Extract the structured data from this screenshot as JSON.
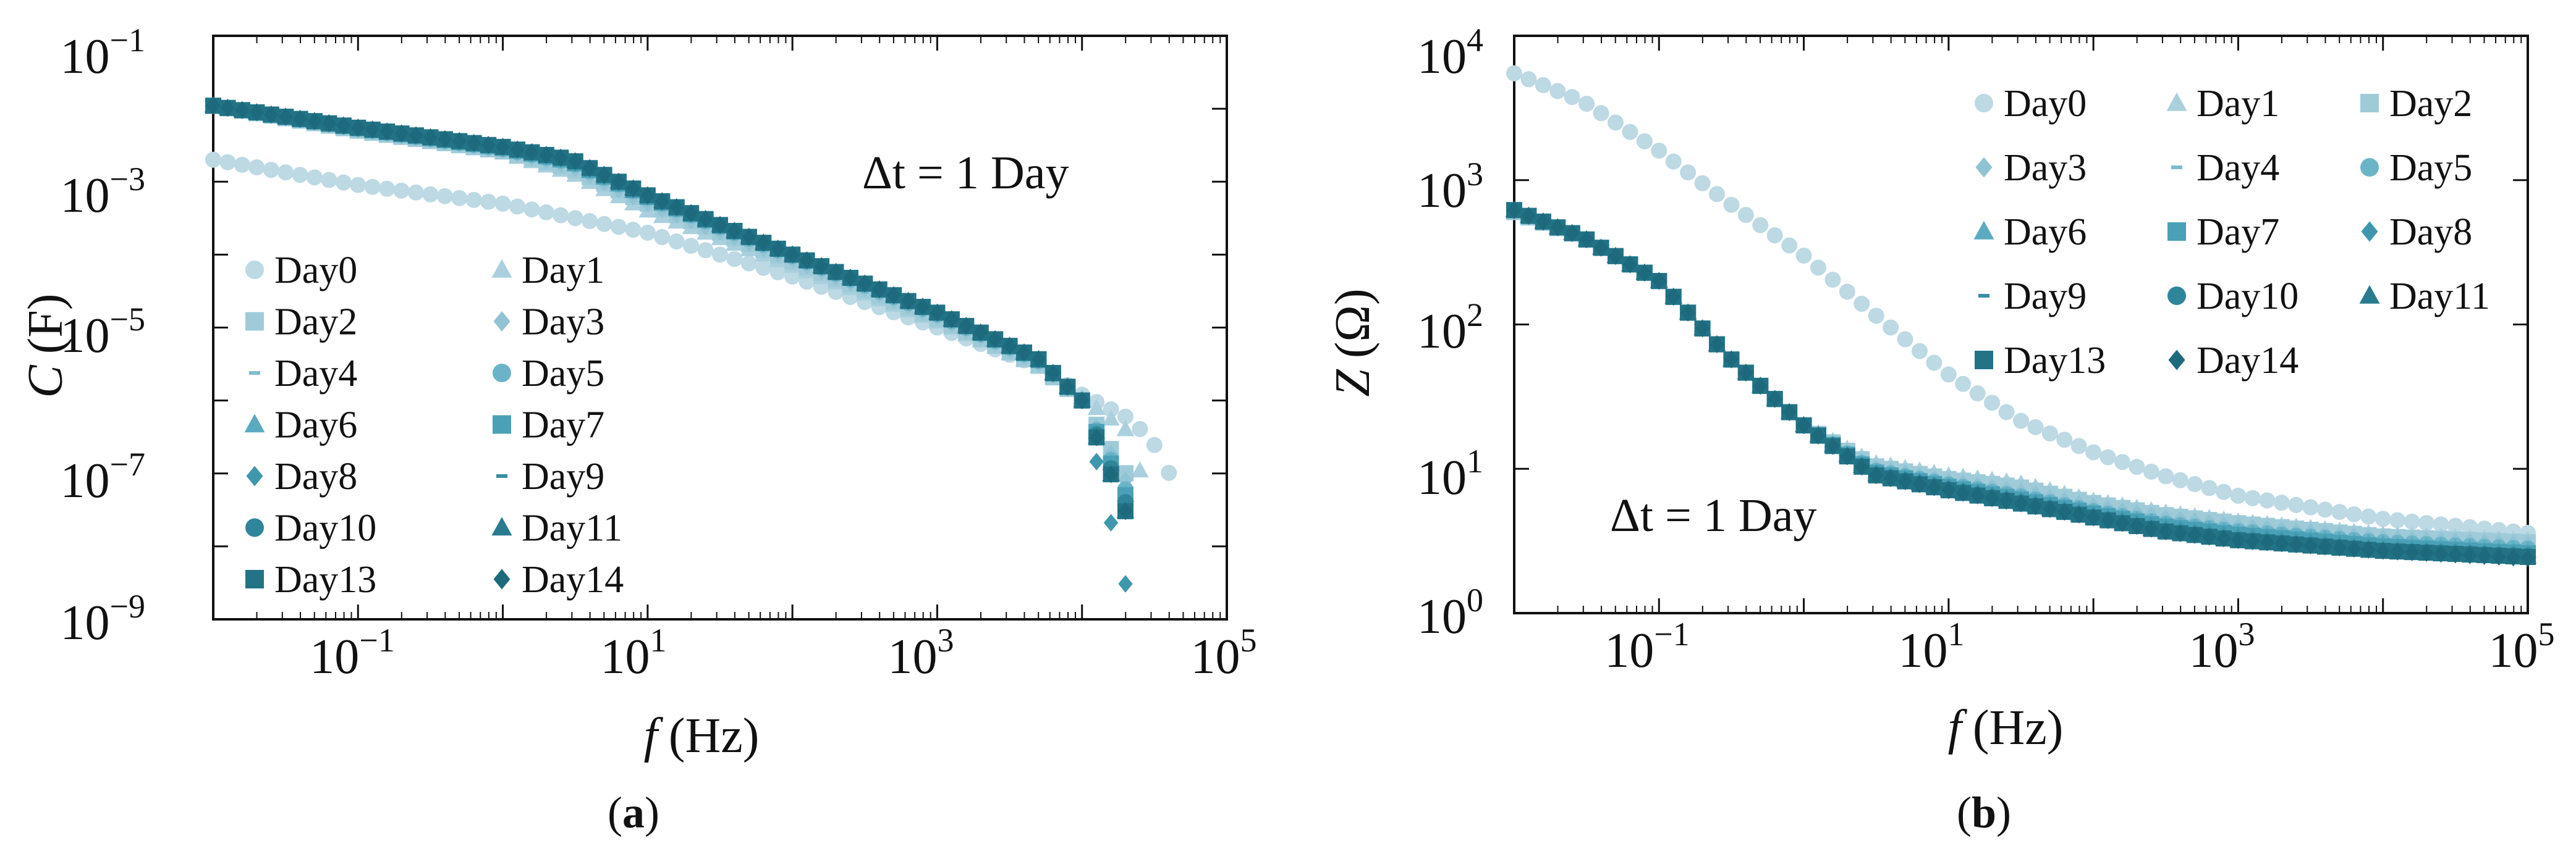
{
  "chart_data": [
    {
      "type": "scatter",
      "panel": "a",
      "panel_label": "(a)",
      "panel_label_parts": {
        "open": "(",
        "letter": "a",
        "close": ")"
      },
      "ylabel": "C (F)",
      "ylabel_parts": {
        "var": "C",
        "unit": "(F)"
      },
      "xlabel": "f (Hz)",
      "xlabel_parts": {
        "var": "f",
        "unit": "(Hz)"
      },
      "x_scale": "log",
      "y_scale": "log",
      "xlim": [
        0.01,
        100000
      ],
      "ylim": [
        1e-09,
        0.1
      ],
      "x_ticks": [
        {
          "base": "10",
          "exp": "−1"
        },
        {
          "base": "10",
          "exp": "1"
        },
        {
          "base": "10",
          "exp": "3"
        },
        {
          "base": "10",
          "exp": "5"
        }
      ],
      "x_tick_values": [
        0.1,
        10,
        1000,
        100000
      ],
      "y_ticks": [
        {
          "base": "10",
          "exp": "−1"
        },
        {
          "base": "10",
          "exp": "−3"
        },
        {
          "base": "10",
          "exp": "−5"
        },
        {
          "base": "10",
          "exp": "−7"
        },
        {
          "base": "10",
          "exp": "−9"
        }
      ],
      "y_tick_values": [
        0.1,
        0.001,
        1e-05,
        1e-07,
        1e-09
      ],
      "annotation": "Δt = 1 Day",
      "legend_position": "lower-left",
      "legend_columns": 2,
      "series": [
        {
          "name": "Day0",
          "marker": "circle",
          "color": "#bcd9e4",
          "x": [
            0.01,
            0.1,
            1,
            10,
            100,
            1000,
            5000,
            10000,
            20000,
            30000,
            40000
          ],
          "y": [
            0.002,
            0.0009,
            0.0005,
            0.0002,
            5e-05,
            1e-05,
            3e-06,
            1.2e-06,
            6e-07,
            3e-07,
            1e-07
          ]
        },
        {
          "name": "Day1",
          "marker": "triangle",
          "color": "#aad0de",
          "x": [
            0.01,
            0.1,
            1,
            3,
            10,
            100,
            1000,
            5000,
            10000,
            20000,
            30000
          ],
          "y": [
            0.011,
            0.005,
            0.0025,
            0.0013,
            0.0004,
            7e-05,
            1.2e-05,
            3e-06,
            1.1e-06,
            4e-07,
            4e-08
          ]
        },
        {
          "name": "Day2",
          "marker": "square",
          "color": "#9fcbd9",
          "x": [
            0.01,
            0.1,
            1,
            3,
            10,
            100,
            1000,
            5000,
            10000,
            20000
          ],
          "y": [
            0.011,
            0.005,
            0.0026,
            0.0015,
            0.0005,
            8e-05,
            1.3e-05,
            3e-06,
            1e-06,
            1e-07
          ]
        },
        {
          "name": "Day3",
          "marker": "diamond",
          "color": "#90c3d4",
          "x": [
            0.01,
            0.1,
            1,
            3,
            10,
            100,
            1000,
            5000,
            10000,
            20000
          ],
          "y": [
            0.011,
            0.0052,
            0.0027,
            0.0016,
            0.0005,
            8.5e-05,
            1.4e-05,
            3.2e-06,
            1e-06,
            8e-08
          ]
        },
        {
          "name": "Day4",
          "marker": "dash",
          "color": "#80bccf",
          "x": [
            0.01,
            0.1,
            1,
            3,
            10,
            100,
            1000,
            5000,
            10000,
            20000
          ],
          "y": [
            0.011,
            0.0053,
            0.0028,
            0.0017,
            0.00055,
            9e-05,
            1.5e-05,
            3.4e-06,
            1e-06,
            7e-08
          ]
        },
        {
          "name": "Day5",
          "marker": "circle",
          "color": "#6bb4c8",
          "x": [
            0.01,
            0.1,
            1,
            3,
            10,
            100,
            1000,
            5000,
            10000,
            20000
          ],
          "y": [
            0.011,
            0.0053,
            0.0028,
            0.0018,
            0.0006,
            9.5e-05,
            1.5e-05,
            3.5e-06,
            1e-06,
            6e-08
          ]
        },
        {
          "name": "Day6",
          "marker": "triangle",
          "color": "#5aabc0",
          "x": [
            0.01,
            0.1,
            1,
            3,
            10,
            100,
            1000,
            5000,
            10000,
            20000
          ],
          "y": [
            0.011,
            0.0054,
            0.0029,
            0.0018,
            0.0006,
            0.0001,
            1.6e-05,
            3.6e-06,
            1e-06,
            5e-08
          ]
        },
        {
          "name": "Day7",
          "marker": "square",
          "color": "#4aa1b7",
          "x": [
            0.01,
            0.1,
            1,
            3,
            10,
            100,
            1000,
            5000,
            10000,
            20000
          ],
          "y": [
            0.011,
            0.0054,
            0.0029,
            0.0019,
            0.00062,
            0.0001,
            1.6e-05,
            3.6e-06,
            1e-06,
            5e-08
          ]
        },
        {
          "name": "Day8",
          "marker": "diamond",
          "color": "#3f97ad",
          "x": [
            0.01,
            0.1,
            1,
            3,
            10,
            100,
            1000,
            5000,
            10000,
            20000
          ],
          "y": [
            0.011,
            0.0055,
            0.003,
            0.0019,
            0.00063,
            0.0001,
            1.6e-05,
            3.7e-06,
            1e-06,
            3e-09
          ]
        },
        {
          "name": "Day9",
          "marker": "dash",
          "color": "#388ea3",
          "x": [
            0.01,
            0.1,
            1,
            3,
            10,
            100,
            1000,
            5000,
            10000,
            20000
          ],
          "y": [
            0.011,
            0.0055,
            0.003,
            0.002,
            0.00064,
            0.0001,
            1.6e-05,
            3.7e-06,
            1e-06,
            4e-08
          ]
        },
        {
          "name": "Day10",
          "marker": "circle",
          "color": "#2f8599",
          "x": [
            0.01,
            0.1,
            1,
            3,
            10,
            100,
            1000,
            5000,
            10000,
            20000
          ],
          "y": [
            0.011,
            0.0055,
            0.003,
            0.002,
            0.00065,
            0.0001,
            1.6e-05,
            3.7e-06,
            1e-06,
            4e-08
          ]
        },
        {
          "name": "Day11",
          "marker": "triangle",
          "color": "#297c8f",
          "x": [
            0.01,
            0.1,
            1,
            3,
            10,
            100,
            1000,
            5000,
            10000,
            20000
          ],
          "y": [
            0.011,
            0.0055,
            0.003,
            0.002,
            0.00065,
            0.0001,
            1.6e-05,
            3.7e-06,
            1e-06,
            3e-08
          ]
        },
        {
          "name": "Day13",
          "marker": "square",
          "color": "#237386",
          "x": [
            0.01,
            0.1,
            1,
            3,
            10,
            100,
            1000,
            5000,
            10000,
            20000
          ],
          "y": [
            0.011,
            0.0055,
            0.003,
            0.002,
            0.00065,
            0.0001,
            1.6e-05,
            3.7e-06,
            1e-06,
            3e-08
          ]
        },
        {
          "name": "Day14",
          "marker": "diamond",
          "color": "#1d6a7c",
          "x": [
            0.01,
            0.1,
            1,
            3,
            10,
            100,
            1000,
            5000,
            10000,
            20000
          ],
          "y": [
            0.011,
            0.0055,
            0.003,
            0.002,
            0.00065,
            0.0001,
            1.6e-05,
            3.7e-06,
            1e-06,
            3e-08
          ]
        }
      ]
    },
    {
      "type": "scatter",
      "panel": "b",
      "panel_label": "(b)",
      "panel_label_parts": {
        "open": "(",
        "letter": "b",
        "close": ")"
      },
      "ylabel": "Z (Ω)",
      "ylabel_parts": {
        "var": "Z",
        "unit": "(Ω)"
      },
      "xlabel": "f (Hz)",
      "xlabel_parts": {
        "var": "f",
        "unit": "(Hz)"
      },
      "x_scale": "log",
      "y_scale": "log",
      "xlim": [
        0.01,
        100000
      ],
      "ylim": [
        1,
        10000
      ],
      "x_ticks": [
        {
          "base": "10",
          "exp": "−1"
        },
        {
          "base": "10",
          "exp": "1"
        },
        {
          "base": "10",
          "exp": "3"
        },
        {
          "base": "10",
          "exp": "5"
        }
      ],
      "x_tick_values": [
        0.1,
        10,
        1000,
        100000
      ],
      "y_ticks": [
        {
          "base": "10",
          "exp": "4"
        },
        {
          "base": "10",
          "exp": "3"
        },
        {
          "base": "10",
          "exp": "2"
        },
        {
          "base": "10",
          "exp": "1"
        },
        {
          "base": "10",
          "exp": "0"
        }
      ],
      "y_tick_values": [
        10000,
        1000,
        100,
        10,
        1
      ],
      "annotation": "Δt = 1 Day",
      "legend_position": "upper-right",
      "legend_columns": 3,
      "series": [
        {
          "name": "Day0",
          "marker": "circle",
          "color": "#bcd9e4",
          "x": [
            0.01,
            0.03,
            0.1,
            0.3,
            1,
            3,
            10,
            30,
            100,
            300,
            1000,
            10000,
            100000
          ],
          "y": [
            5500,
            3500,
            1600,
            700,
            300,
            120,
            45,
            22,
            13,
            9,
            6.5,
            4.5,
            3.6
          ]
        },
        {
          "name": "Day1",
          "marker": "triangle",
          "color": "#aad0de",
          "x": [
            0.01,
            0.03,
            0.1,
            0.3,
            1,
            3,
            10,
            30,
            100,
            300,
            1000,
            10000,
            100000
          ],
          "y": [
            600,
            400,
            200,
            60,
            20,
            11,
            9,
            8,
            6,
            5,
            4.3,
            3.5,
            3.2
          ]
        },
        {
          "name": "Day2",
          "marker": "square",
          "color": "#9fcbd9",
          "x": [
            0.01,
            0.03,
            0.1,
            0.3,
            1,
            3,
            10,
            30,
            100,
            300,
            1000,
            10000,
            100000
          ],
          "y": [
            600,
            400,
            200,
            60,
            20,
            10.5,
            8.5,
            7.5,
            5.8,
            4.8,
            4.2,
            3.4,
            3.1
          ]
        },
        {
          "name": "Day3",
          "marker": "diamond",
          "color": "#90c3d4",
          "x": [
            0.01,
            0.03,
            0.1,
            0.3,
            1,
            3,
            10,
            30,
            100,
            300,
            1000,
            10000,
            100000
          ],
          "y": [
            610,
            400,
            200,
            60,
            20,
            10.2,
            8.2,
            7,
            5.5,
            4.6,
            4,
            3.3,
            3
          ]
        },
        {
          "name": "Day4",
          "marker": "dash",
          "color": "#80bccf",
          "x": [
            0.01,
            0.03,
            0.1,
            0.3,
            1,
            3,
            10,
            30,
            100,
            300,
            1000,
            10000,
            100000
          ],
          "y": [
            610,
            400,
            200,
            60,
            20,
            10,
            8,
            6.8,
            5.3,
            4.4,
            3.9,
            3.2,
            2.9
          ]
        },
        {
          "name": "Day5",
          "marker": "circle",
          "color": "#6bb4c8",
          "x": [
            0.01,
            0.03,
            0.1,
            0.3,
            1,
            3,
            10,
            30,
            100,
            300,
            1000,
            10000,
            100000
          ],
          "y": [
            615,
            400,
            200,
            60,
            20,
            9.8,
            7.8,
            6.5,
            5.1,
            4.2,
            3.7,
            3.1,
            2.8
          ]
        },
        {
          "name": "Day6",
          "marker": "triangle",
          "color": "#5aabc0",
          "x": [
            0.01,
            0.03,
            0.1,
            0.3,
            1,
            3,
            10,
            30,
            100,
            300,
            1000,
            10000,
            100000
          ],
          "y": [
            620,
            400,
            200,
            60,
            20,
            9.6,
            7.6,
            6.3,
            5,
            4.1,
            3.6,
            3,
            2.7
          ]
        },
        {
          "name": "Day7",
          "marker": "square",
          "color": "#4aa1b7",
          "x": [
            0.01,
            0.03,
            0.1,
            0.3,
            1,
            3,
            10,
            30,
            100,
            300,
            1000,
            10000,
            100000
          ],
          "y": [
            620,
            400,
            200,
            60,
            20,
            9.5,
            7.5,
            6.2,
            4.9,
            4,
            3.5,
            2.9,
            2.6
          ]
        },
        {
          "name": "Day8",
          "marker": "diamond",
          "color": "#3f97ad",
          "x": [
            0.01,
            0.03,
            0.1,
            0.3,
            1,
            3,
            10,
            30,
            100,
            300,
            1000,
            10000,
            100000
          ],
          "y": [
            620,
            400,
            200,
            60,
            20,
            9.4,
            7.4,
            6.1,
            4.8,
            3.9,
            3.4,
            2.8,
            2.55
          ]
        },
        {
          "name": "Day9",
          "marker": "dash",
          "color": "#388ea3",
          "x": [
            0.01,
            0.03,
            0.1,
            0.3,
            1,
            3,
            10,
            30,
            100,
            300,
            1000,
            10000,
            100000
          ],
          "y": [
            620,
            400,
            200,
            60,
            20,
            9.3,
            7.3,
            6,
            4.7,
            3.8,
            3.3,
            2.75,
            2.5
          ]
        },
        {
          "name": "Day10",
          "marker": "circle",
          "color": "#2f8599",
          "x": [
            0.01,
            0.03,
            0.1,
            0.3,
            1,
            3,
            10,
            30,
            100,
            300,
            1000,
            10000,
            100000
          ],
          "y": [
            620,
            400,
            200,
            60,
            20,
            9.2,
            7.2,
            5.9,
            4.6,
            3.7,
            3.2,
            2.7,
            2.5
          ]
        },
        {
          "name": "Day11",
          "marker": "triangle",
          "color": "#297c8f",
          "x": [
            0.01,
            0.03,
            0.1,
            0.3,
            1,
            3,
            10,
            30,
            100,
            300,
            1000,
            10000,
            100000
          ],
          "y": [
            620,
            400,
            200,
            60,
            20,
            9.2,
            7.2,
            5.9,
            4.6,
            3.7,
            3.2,
            2.7,
            2.45
          ]
        },
        {
          "name": "Day13",
          "marker": "square",
          "color": "#237386",
          "x": [
            0.01,
            0.03,
            0.1,
            0.3,
            1,
            3,
            10,
            30,
            100,
            300,
            1000,
            10000,
            100000
          ],
          "y": [
            620,
            400,
            200,
            60,
            20,
            9.1,
            7.1,
            5.8,
            4.6,
            3.7,
            3.2,
            2.7,
            2.45
          ]
        },
        {
          "name": "Day14",
          "marker": "diamond",
          "color": "#1d6a7c",
          "x": [
            0.01,
            0.03,
            0.1,
            0.3,
            1,
            3,
            10,
            30,
            100,
            300,
            1000,
            10000,
            100000
          ],
          "y": [
            620,
            400,
            200,
            60,
            20,
            9.1,
            7.1,
            5.8,
            4.6,
            3.7,
            3.2,
            2.7,
            2.4
          ]
        }
      ]
    }
  ]
}
